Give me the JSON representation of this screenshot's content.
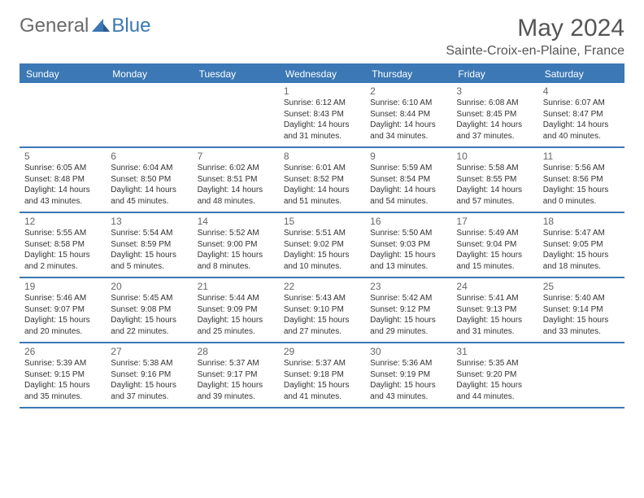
{
  "brand": {
    "part1": "General",
    "part2": "Blue"
  },
  "title": "May 2024",
  "location": "Sainte-Croix-en-Plaine, France",
  "colors": {
    "accent": "#3b78b5",
    "text_muted": "#666666",
    "text_body": "#333333",
    "header_text": "#555555",
    "white": "#ffffff"
  },
  "day_headers": [
    "Sunday",
    "Monday",
    "Tuesday",
    "Wednesday",
    "Thursday",
    "Friday",
    "Saturday"
  ],
  "weeks": [
    [
      null,
      null,
      null,
      {
        "n": "1",
        "sr": "Sunrise: 6:12 AM",
        "ss": "Sunset: 8:43 PM",
        "d1": "Daylight: 14 hours",
        "d2": "and 31 minutes."
      },
      {
        "n": "2",
        "sr": "Sunrise: 6:10 AM",
        "ss": "Sunset: 8:44 PM",
        "d1": "Daylight: 14 hours",
        "d2": "and 34 minutes."
      },
      {
        "n": "3",
        "sr": "Sunrise: 6:08 AM",
        "ss": "Sunset: 8:45 PM",
        "d1": "Daylight: 14 hours",
        "d2": "and 37 minutes."
      },
      {
        "n": "4",
        "sr": "Sunrise: 6:07 AM",
        "ss": "Sunset: 8:47 PM",
        "d1": "Daylight: 14 hours",
        "d2": "and 40 minutes."
      }
    ],
    [
      {
        "n": "5",
        "sr": "Sunrise: 6:05 AM",
        "ss": "Sunset: 8:48 PM",
        "d1": "Daylight: 14 hours",
        "d2": "and 43 minutes."
      },
      {
        "n": "6",
        "sr": "Sunrise: 6:04 AM",
        "ss": "Sunset: 8:50 PM",
        "d1": "Daylight: 14 hours",
        "d2": "and 45 minutes."
      },
      {
        "n": "7",
        "sr": "Sunrise: 6:02 AM",
        "ss": "Sunset: 8:51 PM",
        "d1": "Daylight: 14 hours",
        "d2": "and 48 minutes."
      },
      {
        "n": "8",
        "sr": "Sunrise: 6:01 AM",
        "ss": "Sunset: 8:52 PM",
        "d1": "Daylight: 14 hours",
        "d2": "and 51 minutes."
      },
      {
        "n": "9",
        "sr": "Sunrise: 5:59 AM",
        "ss": "Sunset: 8:54 PM",
        "d1": "Daylight: 14 hours",
        "d2": "and 54 minutes."
      },
      {
        "n": "10",
        "sr": "Sunrise: 5:58 AM",
        "ss": "Sunset: 8:55 PM",
        "d1": "Daylight: 14 hours",
        "d2": "and 57 minutes."
      },
      {
        "n": "11",
        "sr": "Sunrise: 5:56 AM",
        "ss": "Sunset: 8:56 PM",
        "d1": "Daylight: 15 hours",
        "d2": "and 0 minutes."
      }
    ],
    [
      {
        "n": "12",
        "sr": "Sunrise: 5:55 AM",
        "ss": "Sunset: 8:58 PM",
        "d1": "Daylight: 15 hours",
        "d2": "and 2 minutes."
      },
      {
        "n": "13",
        "sr": "Sunrise: 5:54 AM",
        "ss": "Sunset: 8:59 PM",
        "d1": "Daylight: 15 hours",
        "d2": "and 5 minutes."
      },
      {
        "n": "14",
        "sr": "Sunrise: 5:52 AM",
        "ss": "Sunset: 9:00 PM",
        "d1": "Daylight: 15 hours",
        "d2": "and 8 minutes."
      },
      {
        "n": "15",
        "sr": "Sunrise: 5:51 AM",
        "ss": "Sunset: 9:02 PM",
        "d1": "Daylight: 15 hours",
        "d2": "and 10 minutes."
      },
      {
        "n": "16",
        "sr": "Sunrise: 5:50 AM",
        "ss": "Sunset: 9:03 PM",
        "d1": "Daylight: 15 hours",
        "d2": "and 13 minutes."
      },
      {
        "n": "17",
        "sr": "Sunrise: 5:49 AM",
        "ss": "Sunset: 9:04 PM",
        "d1": "Daylight: 15 hours",
        "d2": "and 15 minutes."
      },
      {
        "n": "18",
        "sr": "Sunrise: 5:47 AM",
        "ss": "Sunset: 9:05 PM",
        "d1": "Daylight: 15 hours",
        "d2": "and 18 minutes."
      }
    ],
    [
      {
        "n": "19",
        "sr": "Sunrise: 5:46 AM",
        "ss": "Sunset: 9:07 PM",
        "d1": "Daylight: 15 hours",
        "d2": "and 20 minutes."
      },
      {
        "n": "20",
        "sr": "Sunrise: 5:45 AM",
        "ss": "Sunset: 9:08 PM",
        "d1": "Daylight: 15 hours",
        "d2": "and 22 minutes."
      },
      {
        "n": "21",
        "sr": "Sunrise: 5:44 AM",
        "ss": "Sunset: 9:09 PM",
        "d1": "Daylight: 15 hours",
        "d2": "and 25 minutes."
      },
      {
        "n": "22",
        "sr": "Sunrise: 5:43 AM",
        "ss": "Sunset: 9:10 PM",
        "d1": "Daylight: 15 hours",
        "d2": "and 27 minutes."
      },
      {
        "n": "23",
        "sr": "Sunrise: 5:42 AM",
        "ss": "Sunset: 9:12 PM",
        "d1": "Daylight: 15 hours",
        "d2": "and 29 minutes."
      },
      {
        "n": "24",
        "sr": "Sunrise: 5:41 AM",
        "ss": "Sunset: 9:13 PM",
        "d1": "Daylight: 15 hours",
        "d2": "and 31 minutes."
      },
      {
        "n": "25",
        "sr": "Sunrise: 5:40 AM",
        "ss": "Sunset: 9:14 PM",
        "d1": "Daylight: 15 hours",
        "d2": "and 33 minutes."
      }
    ],
    [
      {
        "n": "26",
        "sr": "Sunrise: 5:39 AM",
        "ss": "Sunset: 9:15 PM",
        "d1": "Daylight: 15 hours",
        "d2": "and 35 minutes."
      },
      {
        "n": "27",
        "sr": "Sunrise: 5:38 AM",
        "ss": "Sunset: 9:16 PM",
        "d1": "Daylight: 15 hours",
        "d2": "and 37 minutes."
      },
      {
        "n": "28",
        "sr": "Sunrise: 5:37 AM",
        "ss": "Sunset: 9:17 PM",
        "d1": "Daylight: 15 hours",
        "d2": "and 39 minutes."
      },
      {
        "n": "29",
        "sr": "Sunrise: 5:37 AM",
        "ss": "Sunset: 9:18 PM",
        "d1": "Daylight: 15 hours",
        "d2": "and 41 minutes."
      },
      {
        "n": "30",
        "sr": "Sunrise: 5:36 AM",
        "ss": "Sunset: 9:19 PM",
        "d1": "Daylight: 15 hours",
        "d2": "and 43 minutes."
      },
      {
        "n": "31",
        "sr": "Sunrise: 5:35 AM",
        "ss": "Sunset: 9:20 PM",
        "d1": "Daylight: 15 hours",
        "d2": "and 44 minutes."
      },
      null
    ]
  ]
}
